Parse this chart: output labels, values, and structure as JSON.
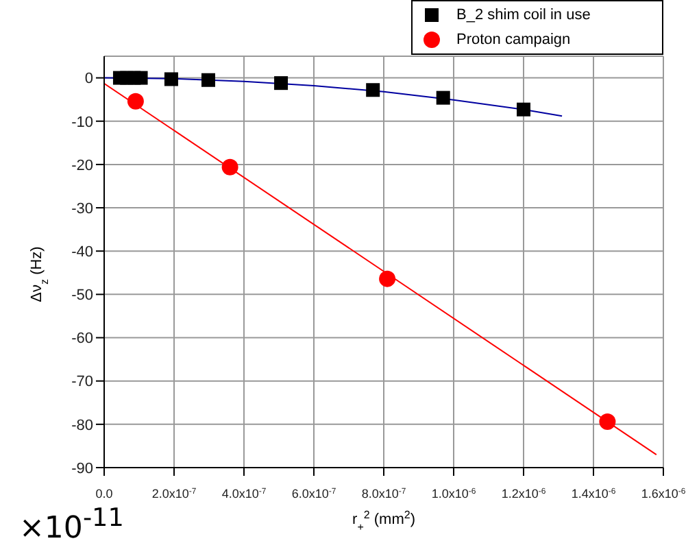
{
  "chart_data": {
    "type": "scatter",
    "xlabel": "r$_{+}$$^{2}$ (mm$^{2}$)",
    "ylabel": "Δν$_{z}$ (Hz)",
    "annotations": [
      "×10$^{-11}$"
    ],
    "xlim": [
      0,
      1.6e-06
    ],
    "xticks": [
      {
        "value": 0,
        "label": "0.0"
      },
      {
        "value": 2e-07,
        "label": "2.0x10$^{-7}$"
      },
      {
        "value": 4e-07,
        "label": "4.0x10$^{-7}$"
      },
      {
        "value": 6e-07,
        "label": "6.0x10$^{-7}$"
      },
      {
        "value": 8e-07,
        "label": "8.0x10$^{-7}$"
      },
      {
        "value": 1e-06,
        "label": "1.0x10$^{-6}$"
      },
      {
        "value": 1.2e-06,
        "label": "1.2x10$^{-6}$"
      },
      {
        "value": 1.4e-06,
        "label": "1.4x10$^{-6}$"
      },
      {
        "value": 1.6e-06,
        "label": "1.6x10$^{-6}$"
      }
    ],
    "ylim": [
      -90,
      5
    ],
    "yticks": [
      0,
      -10,
      -20,
      -30,
      -40,
      -50,
      -60,
      -70,
      -80,
      -90
    ],
    "grid": true,
    "legend": "top right",
    "series": [
      {
        "name": "B_2 shim coil in use",
        "marker": "square",
        "color": "#000000",
        "x": [
          4.5e-08,
          6.5e-08,
          8.5e-08,
          1.05e-07,
          1.92e-07,
          2.98e-07,
          5.06e-07,
          7.69e-07,
          9.7e-07,
          1.2e-06
        ],
        "values": [
          0,
          0,
          0,
          0,
          -0.3,
          -0.5,
          -1.2,
          -2.8,
          -4.6,
          -7.3
        ]
      },
      {
        "name": "Proton campaign",
        "marker": "circle",
        "color": "#ff0000",
        "x": [
          9e-08,
          3.6e-07,
          8.1e-07,
          1.44e-06
        ],
        "values": [
          -5.4,
          -20.6,
          -46.4,
          -79.4
        ]
      },
      {
        "type": "line",
        "marker": "none",
        "color": "#0000a0",
        "x": [
          0,
          2e-07,
          4e-07,
          6e-07,
          8e-07,
          1e-06,
          1.2e-06,
          1.31e-06
        ],
        "values": [
          0,
          -0.2,
          -0.8,
          -1.8,
          -3.2,
          -5.1,
          -7.3,
          -8.8
        ]
      },
      {
        "type": "line",
        "marker": "none",
        "color": "#ff0000",
        "x": [
          0,
          1.58e-06
        ],
        "values": [
          -1.3,
          -87
        ]
      }
    ]
  }
}
